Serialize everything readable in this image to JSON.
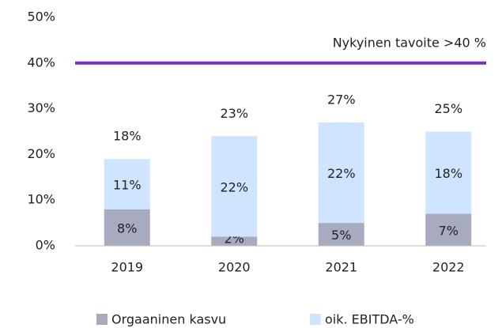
{
  "chart_data": {
    "type": "stacked_bar",
    "categories": [
      "2019",
      "2020",
      "2021",
      "2022"
    ],
    "series": [
      {
        "name": "Orgaaninen kasvu",
        "color": "#a7abc0",
        "values": [
          8,
          2,
          5,
          7
        ],
        "value_labels": [
          "8%",
          "2%",
          "5%",
          "7%"
        ]
      },
      {
        "name": "oik. EBITDA-%",
        "color": "#cfe5ff",
        "values": [
          11,
          22,
          22,
          18
        ],
        "value_labels": [
          "11%",
          "22%",
          "22%",
          "18%"
        ]
      }
    ],
    "total_labels": [
      "18%",
      "23%",
      "27%",
      "25%"
    ],
    "target": {
      "value": 40,
      "label": "Nykyinen tavoite >40 %",
      "color": "#7a2fbf"
    },
    "ylim": [
      0,
      50
    ],
    "yticks": [
      {
        "value": 0,
        "label": "0%"
      },
      {
        "value": 10,
        "label": "10%"
      },
      {
        "value": 20,
        "label": "20%"
      },
      {
        "value": 30,
        "label": "30%"
      },
      {
        "value": 40,
        "label": "40%"
      },
      {
        "value": 50,
        "label": "50%"
      }
    ],
    "grid": false,
    "legend": "bottom"
  }
}
